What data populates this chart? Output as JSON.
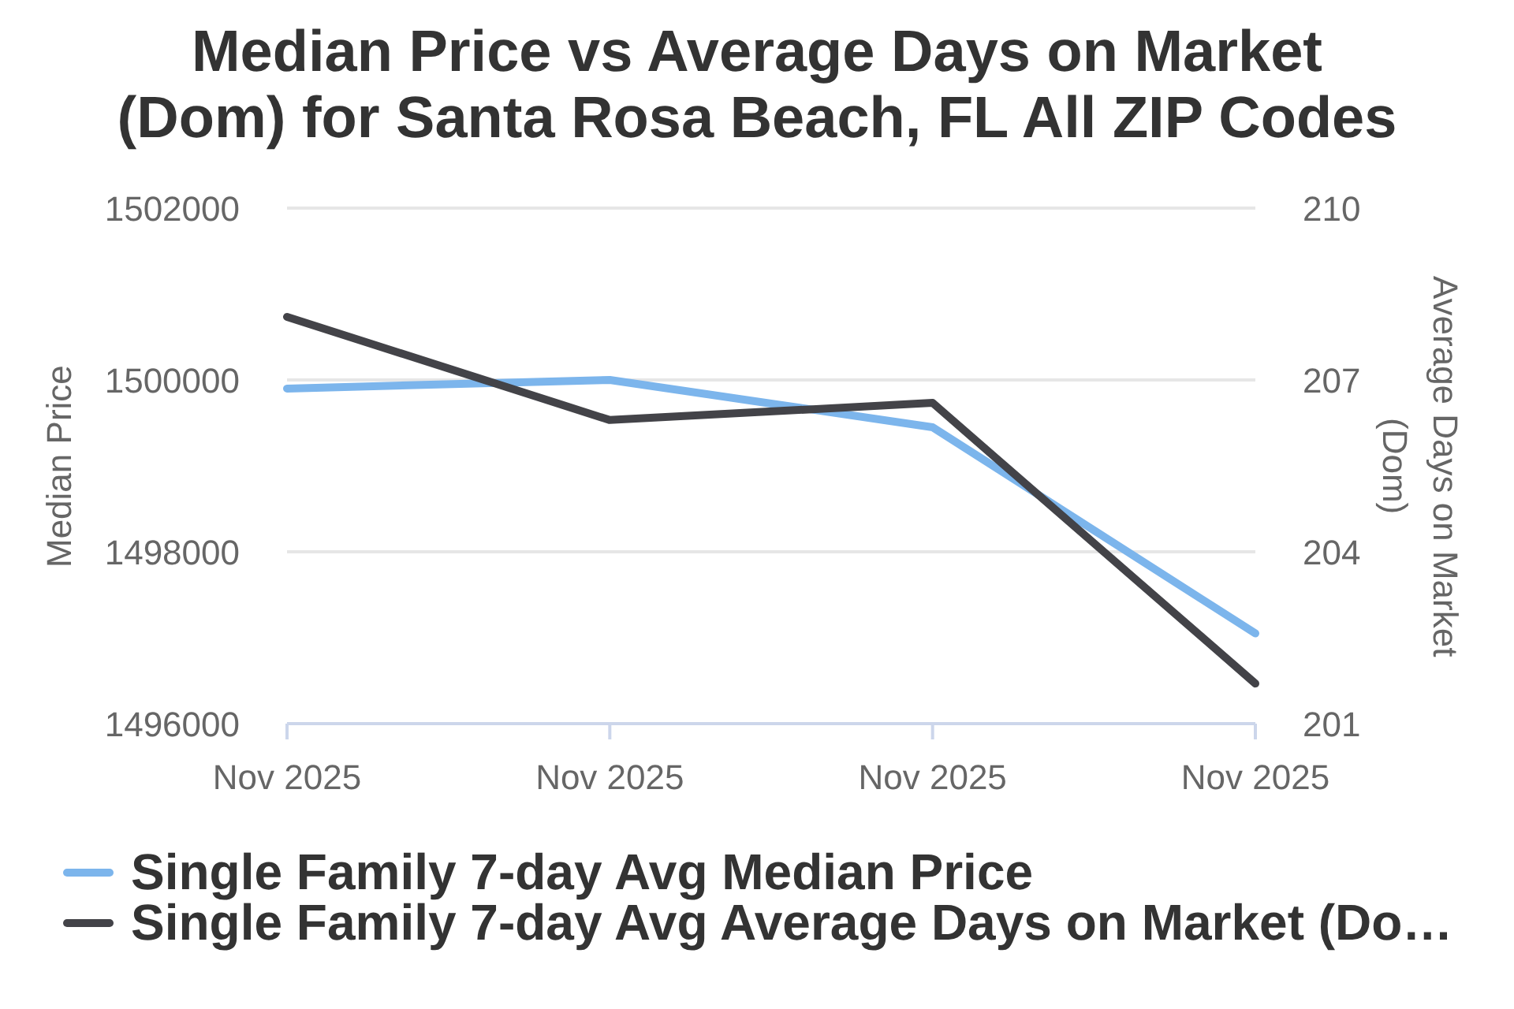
{
  "chart_data": {
    "type": "line",
    "title": "Median Price vs Average Days on Market (Dom) for Santa Rosa Beach, FL All ZIP Codes",
    "ylabel": "Median Price",
    "y2label": "Average Days on Market (Dom)",
    "categories": [
      "Nov 2025",
      "Nov 2025",
      "Nov 2025",
      "Nov 2025"
    ],
    "series": [
      {
        "name": "Single Family 7-day Avg Median Price",
        "color": "#7cb5ec",
        "values": [
          1499900,
          1500000,
          1499450,
          1497050
        ]
      },
      {
        "name": "Single Family 7-day Avg Average Days on Market (Do…",
        "color": "#434348",
        "axis": "y2",
        "values": [
          208.1,
          206.3,
          206.6,
          201.7
        ]
      }
    ],
    "ylim": [
      1496000,
      1502000
    ],
    "yticks": [
      1496000,
      1498000,
      1500000,
      1502000
    ],
    "y2lim": [
      201,
      210
    ],
    "y2ticks": [
      201,
      204,
      207,
      210
    ],
    "grid": "y",
    "legend": "bottom",
    "marker": "none"
  }
}
